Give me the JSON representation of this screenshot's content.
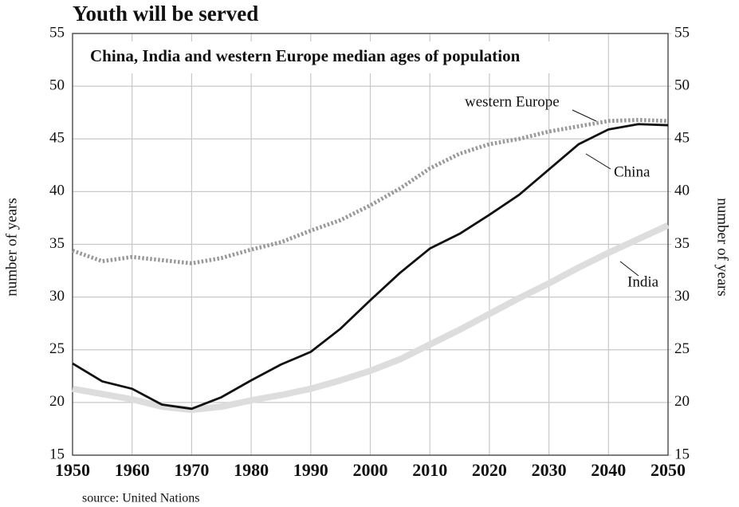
{
  "chart_data": {
    "type": "line",
    "title": "Youth will be served",
    "subtitle": "China, India and western Europe median ages of population",
    "ylabel": "number of years",
    "y2label": "number of years",
    "source": "source: United Nations",
    "x": [
      1950,
      1955,
      1960,
      1965,
      1970,
      1975,
      1980,
      1985,
      1990,
      1995,
      2000,
      2005,
      2010,
      2015,
      2020,
      2025,
      2030,
      2035,
      2040,
      2045,
      2050
    ],
    "series": [
      {
        "name": "western Europe",
        "color": "#999999",
        "style": "dotted",
        "values": [
          34.4,
          33.4,
          33.8,
          33.5,
          33.2,
          33.7,
          34.5,
          35.2,
          36.3,
          37.3,
          38.7,
          40.3,
          42.2,
          43.6,
          44.5,
          45.0,
          45.7,
          46.2,
          46.7,
          46.8,
          46.7
        ]
      },
      {
        "name": "China",
        "color": "#111111",
        "values": [
          23.7,
          22.0,
          21.3,
          19.8,
          19.4,
          20.5,
          22.1,
          23.6,
          24.8,
          27.0,
          29.7,
          32.3,
          34.6,
          36.0,
          37.8,
          39.7,
          42.1,
          44.5,
          45.9,
          46.4,
          46.3
        ]
      },
      {
        "name": "India",
        "color": "#dddddd",
        "values": [
          21.3,
          20.8,
          20.3,
          19.6,
          19.3,
          19.6,
          20.2,
          20.7,
          21.3,
          22.1,
          23.0,
          24.1,
          25.5,
          26.9,
          28.4,
          29.9,
          31.3,
          32.8,
          34.2,
          35.5,
          36.8
        ]
      }
    ],
    "xlim": [
      1950,
      2050
    ],
    "xticks": [
      1950,
      1960,
      1970,
      1980,
      1990,
      2000,
      2010,
      2020,
      2030,
      2040,
      2050
    ],
    "ylim": [
      15,
      55
    ],
    "yticks": [
      15,
      20,
      25,
      30,
      35,
      40,
      45,
      50,
      55
    ],
    "y2lim": [
      15,
      55
    ],
    "y2ticks": [
      15,
      20,
      25,
      30,
      35,
      40,
      45,
      50,
      55
    ],
    "grid": true
  }
}
